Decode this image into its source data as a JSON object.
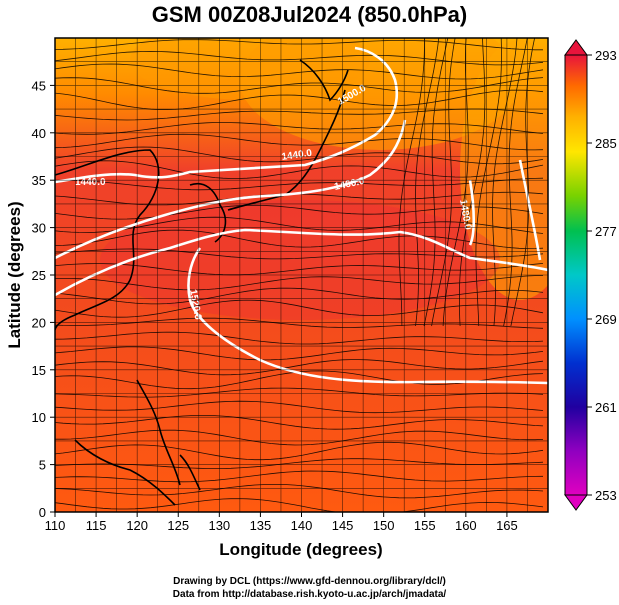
{
  "title": "GSM 00Z08Jul2024 (850.0hPa)",
  "axes": {
    "xlabel": "Longitude (degrees)",
    "ylabel": "Latitude  (degrees)",
    "xlim": [
      110,
      170
    ],
    "ylim": [
      0,
      50
    ],
    "xticks": [
      110,
      115,
      120,
      125,
      130,
      135,
      140,
      145,
      150,
      155,
      160,
      165
    ],
    "yticks": [
      0,
      5,
      10,
      15,
      20,
      25,
      30,
      35,
      40,
      45
    ]
  },
  "colorbar": {
    "ticks": [
      "293",
      "285",
      "277",
      "269",
      "261",
      "253"
    ],
    "colors": [
      "#e8143c",
      "#ff6a00",
      "#ffb000",
      "#ffe600",
      "#78d200",
      "#00c050",
      "#00c8c8",
      "#0090ff",
      "#0030d0",
      "#2000a0",
      "#9000c0",
      "#e000c0"
    ]
  },
  "contours": [
    {
      "label": "1440.0"
    },
    {
      "label": "1460.0"
    },
    {
      "label": "1480.0"
    },
    {
      "label": "1500.0"
    },
    {
      "label": "1520.0"
    },
    {
      "label": "1440.0"
    }
  ],
  "credits": [
    "Drawing by DCL (https://www.gfd-dennou.org/library/dcl/)",
    "Data from http://database.rish.kyoto-u.ac.jp/arch/jmadata/"
  ]
}
